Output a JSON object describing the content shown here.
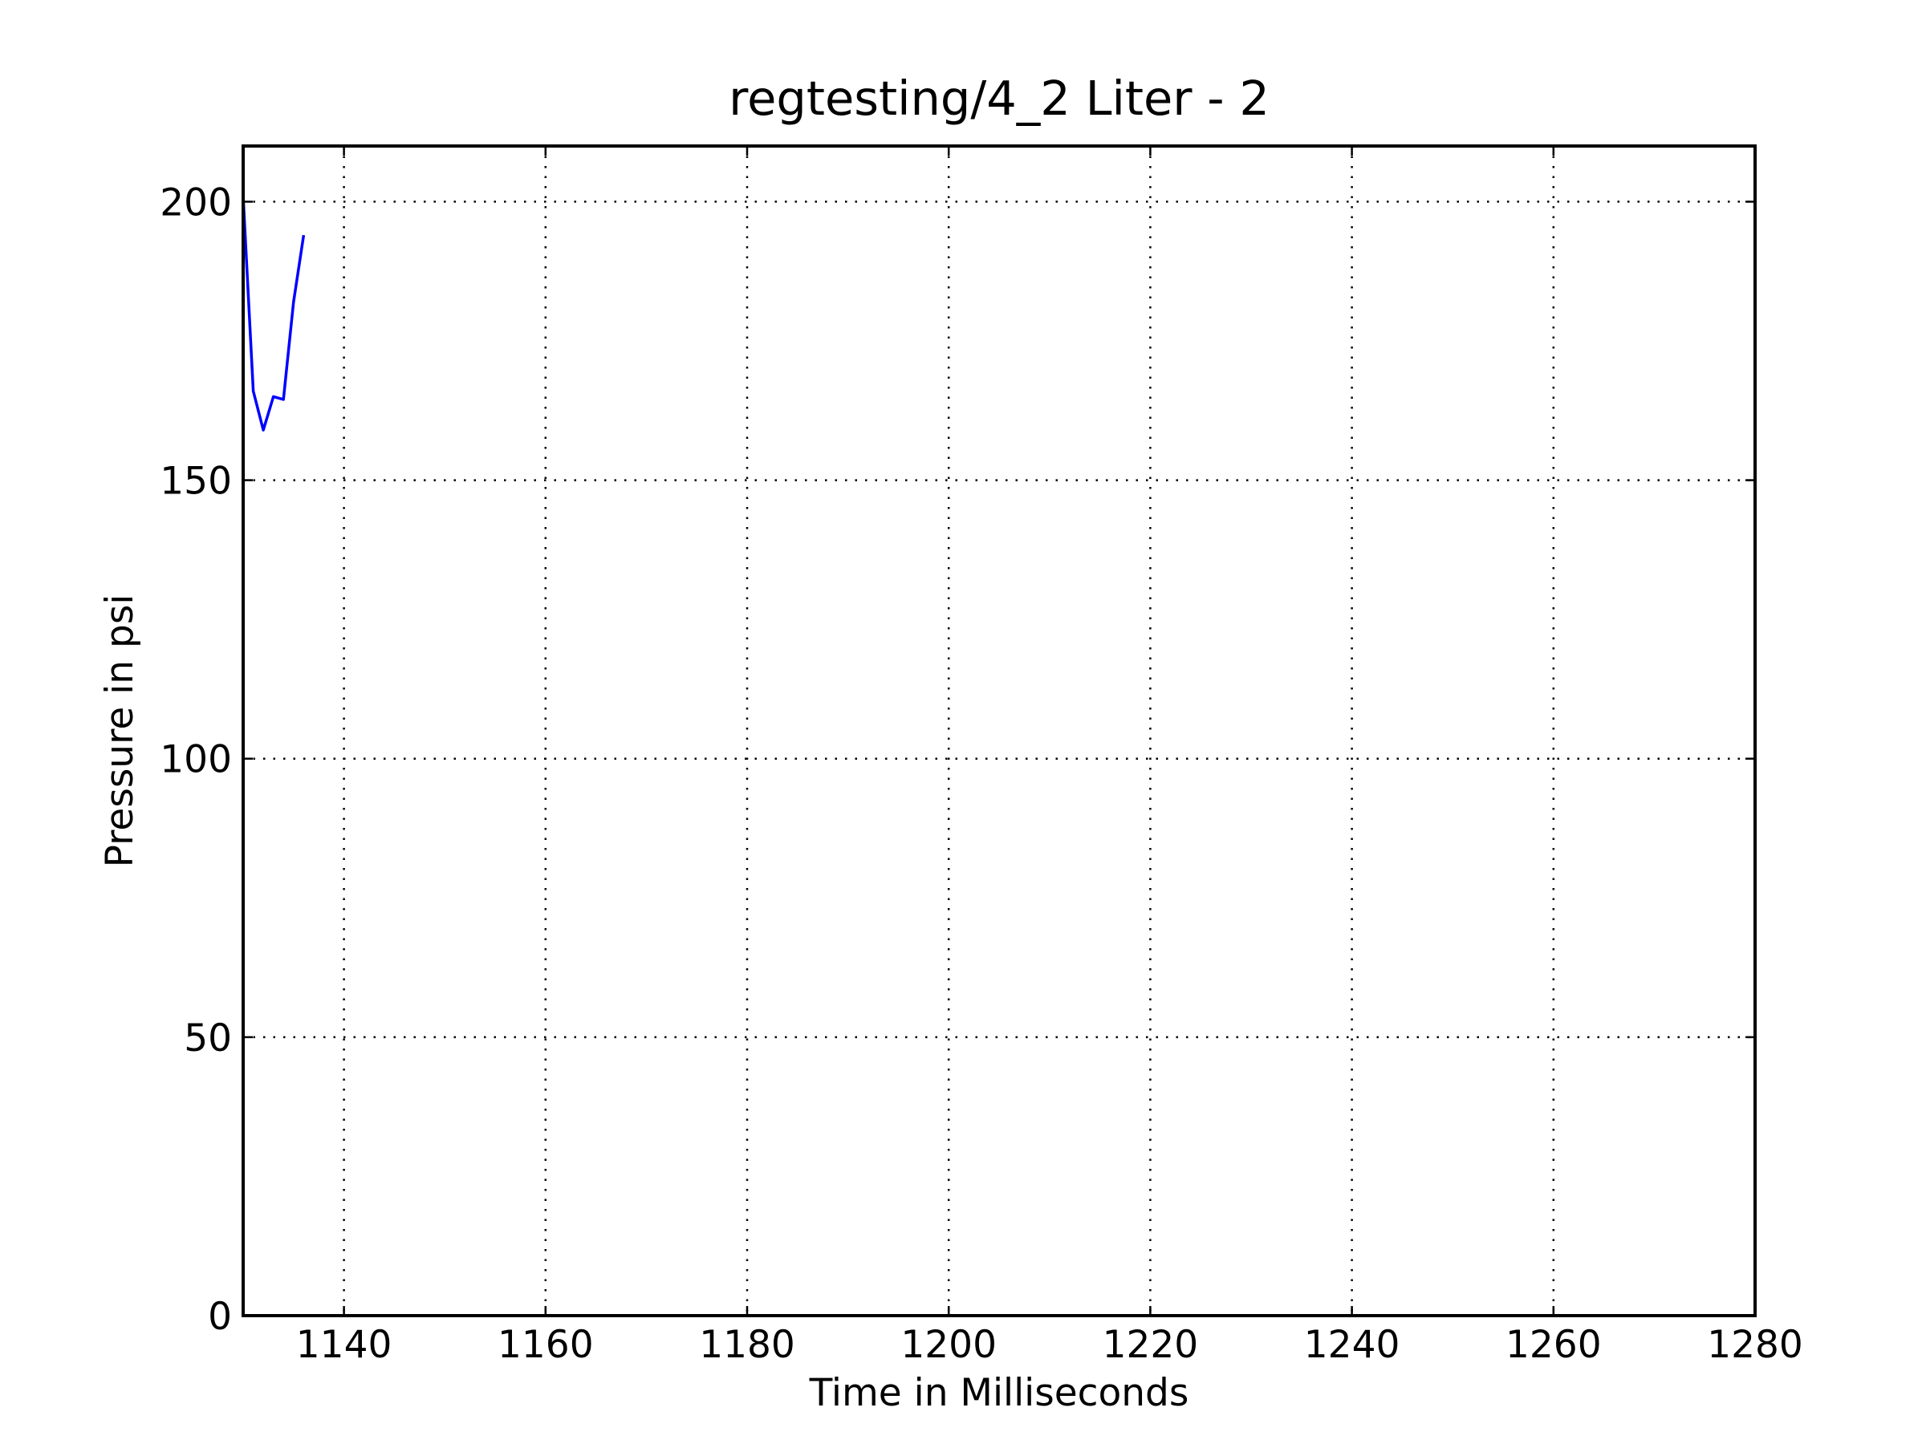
{
  "chart_data": {
    "type": "line",
    "title": "regtesting/4_2 Liter - 2",
    "xlabel": "Time in Milliseconds",
    "ylabel": "Pressure in psi",
    "xlim": [
      1130,
      1280
    ],
    "ylim": [
      0,
      210
    ],
    "xticks": [
      1140,
      1160,
      1180,
      1200,
      1220,
      1240,
      1260,
      1280
    ],
    "yticks": [
      0,
      50,
      100,
      150,
      200
    ],
    "grid": true,
    "series": [
      {
        "color": "#0000ff",
        "x": [
          1130,
          1131,
          1132,
          1133,
          1134,
          1135,
          1136
        ],
        "y": [
          201,
          166,
          159,
          165,
          164.5,
          182,
          194
        ]
      }
    ]
  }
}
